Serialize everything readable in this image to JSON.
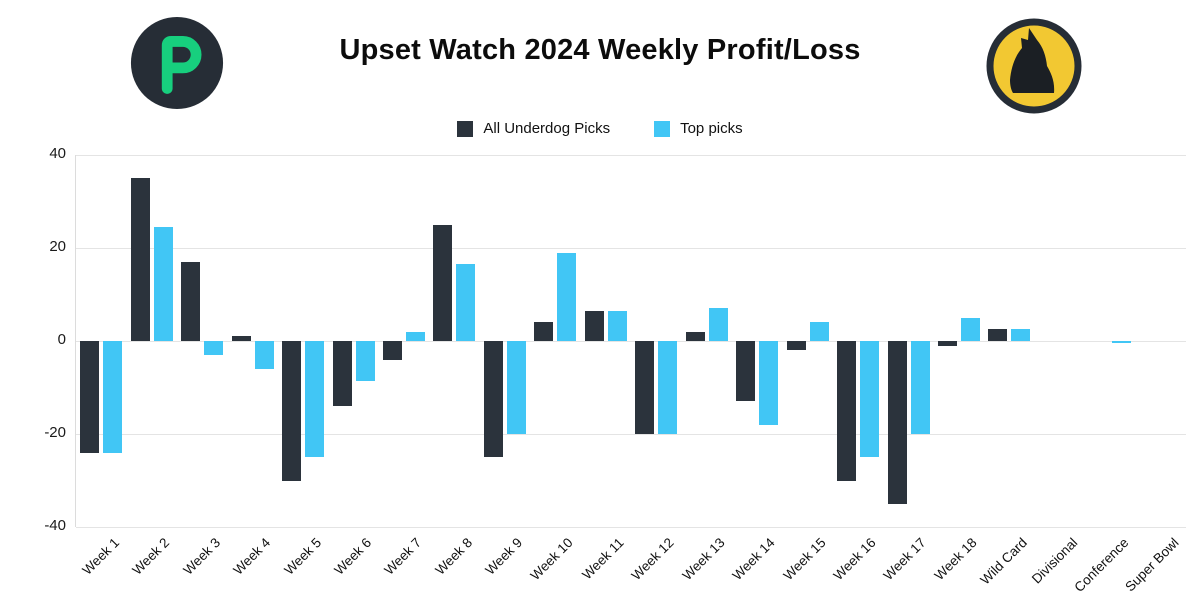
{
  "header": {
    "title": "Upset Watch 2024 Weekly Profit/Loss"
  },
  "logos": {
    "left": "p-ring-logo",
    "right": "howling-wolf-logo",
    "left_bg": "#262d36",
    "left_accent": "#17cf7e",
    "right_bg": "#f2c832",
    "right_border": "#262d36"
  },
  "legend": {
    "items": [
      {
        "label": "All Underdog Picks",
        "color": "#2b333c"
      },
      {
        "label": "Top picks",
        "color": "#41c6f5"
      }
    ]
  },
  "chart_data": {
    "type": "bar",
    "title": "Upset Watch 2024 Weekly Profit/Loss",
    "xlabel": "",
    "ylabel": "",
    "ylim": [
      -40,
      40
    ],
    "ytick_step": 20,
    "grid": true,
    "legend_position": "top",
    "categories": [
      "Week 1",
      "Week 2",
      "Week 3",
      "Week 4",
      "Week 5",
      "Week 6",
      "Week 7",
      "Week 8",
      "Week 9",
      "Week 10",
      "Week 11",
      "Week 12",
      "Week 13",
      "Week 14",
      "Week 15",
      "Week 16",
      "Week 17",
      "Week 18",
      "Wild Card",
      "Divisional",
      "Conference",
      "Super Bowl"
    ],
    "series": [
      {
        "name": "All Underdog Picks",
        "color": "#2b333c",
        "values": [
          -24,
          35,
          17,
          1,
          -30,
          -14,
          -4,
          25,
          -25,
          4,
          6.5,
          -20,
          2,
          -13,
          -2,
          -30,
          -35,
          -1,
          2.5,
          0,
          0,
          0
        ]
      },
      {
        "name": "Top picks",
        "color": "#41c6f5",
        "values": [
          -24,
          24.5,
          -3,
          -6,
          -25,
          -8.5,
          2,
          16.5,
          -20,
          19,
          6.5,
          -20,
          7,
          -18,
          4,
          -25,
          -20,
          5,
          2.5,
          0,
          -0.5,
          0
        ]
      }
    ]
  }
}
